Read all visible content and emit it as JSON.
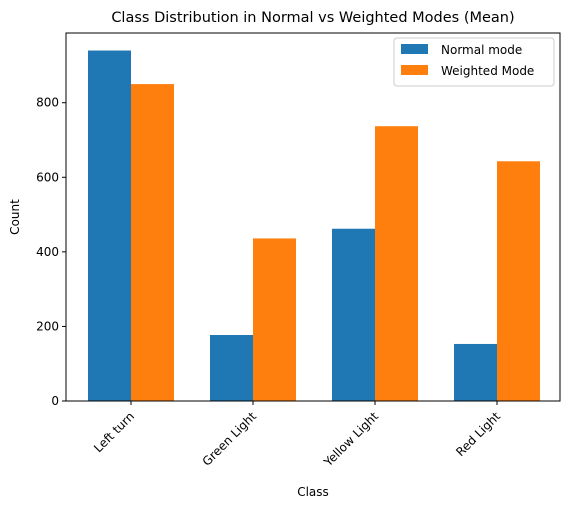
{
  "chart_data": {
    "type": "bar",
    "title": "Class Distribution in Normal vs Weighted Modes (Mean)",
    "xlabel": "Class",
    "ylabel": "Count",
    "categories": [
      "Left turn",
      "Green Light",
      "Yellow Light",
      "Red Light"
    ],
    "series": [
      {
        "name": "Normal mode",
        "values": [
          940,
          177,
          462,
          153
        ],
        "color": "#1f77b4"
      },
      {
        "name": "Weighted Mode",
        "values": [
          850,
          436,
          737,
          643
        ],
        "color": "#ff7f0e"
      }
    ],
    "ylim": [
      0,
      987
    ],
    "yticks": [
      0,
      200,
      400,
      600,
      800
    ],
    "ytick_labels": [
      "0",
      "200",
      "400",
      "600",
      "800"
    ],
    "grid": false,
    "legend_position": "top-right"
  }
}
